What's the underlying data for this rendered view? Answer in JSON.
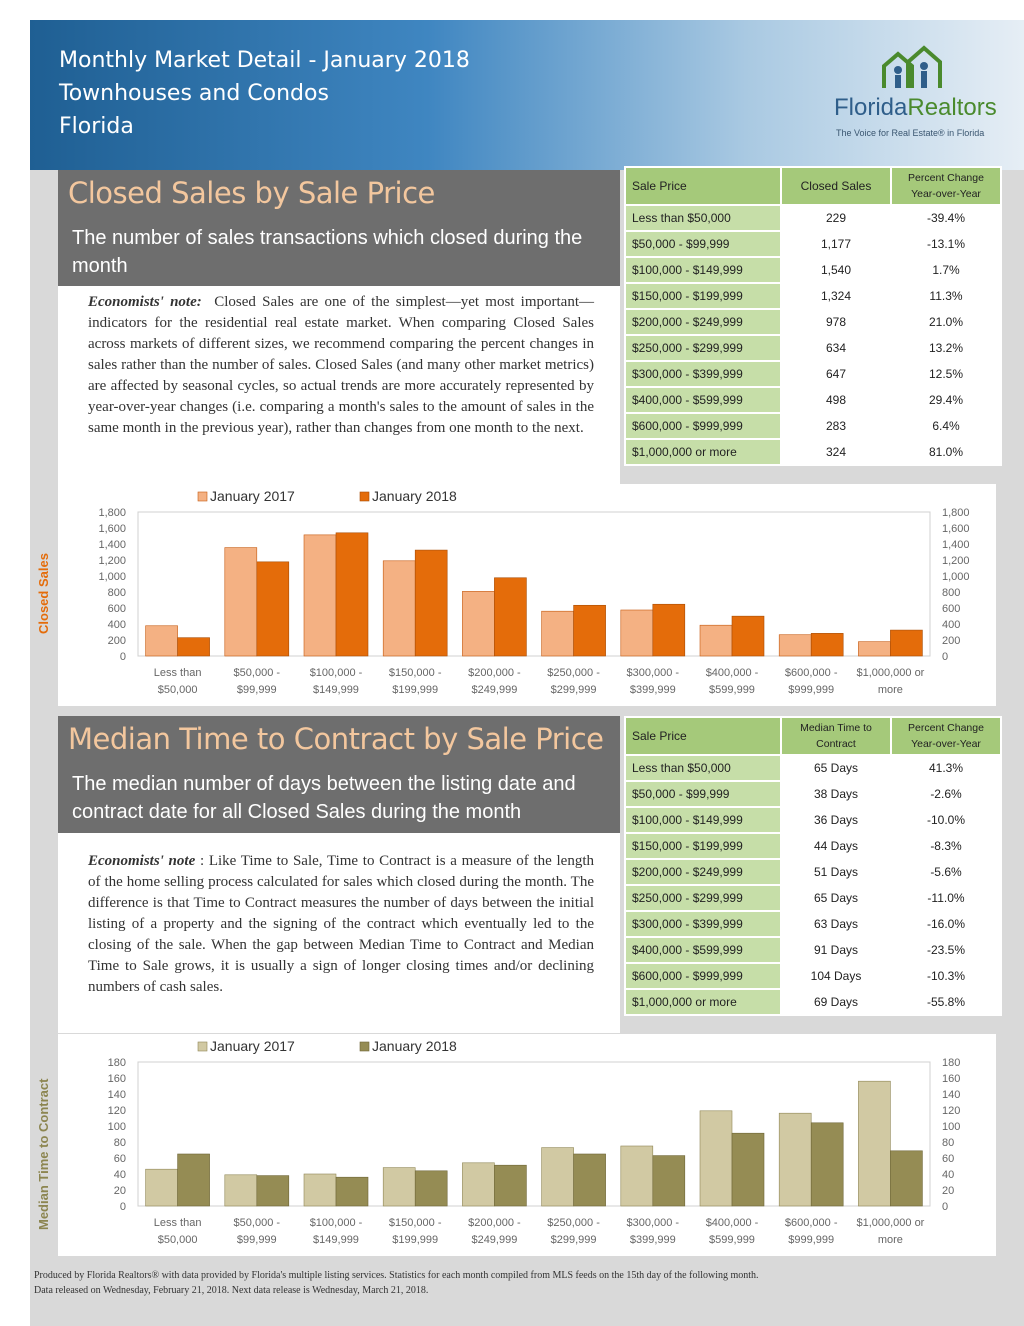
{
  "header": {
    "line1": "Monthly Market Detail - January 2018",
    "line2": "Townhouses and Condos",
    "line3": "Florida",
    "logo_name_part1": "Florida",
    "logo_name_part2": "Realtors",
    "logo_tagline": "The Voice for Real Estate® in Florida",
    "colors": {
      "header_start": "#1f5f93",
      "header_end": "#e6eef5"
    }
  },
  "closed_sales": {
    "title": "Closed Sales by Sale Price",
    "subtitle": "The number of sales transactions which closed during the month",
    "note_lead": "Economists' note:",
    "note_body": "Closed Sales are one of the simplest—yet most important—indicators for the residential real estate market. When comparing Closed Sales across markets of different sizes, we recommend comparing the percent changes in sales rather than the number of sales. Closed Sales (and many other market metrics) are affected by seasonal cycles, so actual trends are more accurately represented by year-over-year changes (i.e. comparing a month's sales to the amount of sales in the same month in the previous year), rather than changes from one month to the next.",
    "table": {
      "headers": [
        "Sale Price",
        "Closed Sales",
        "Percent Change Year-over-Year"
      ],
      "rows": [
        [
          "Less than $50,000",
          "229",
          "-39.4%"
        ],
        [
          "$50,000 - $99,999",
          "1,177",
          "-13.1%"
        ],
        [
          "$100,000 - $149,999",
          "1,540",
          "1.7%"
        ],
        [
          "$150,000 - $199,999",
          "1,324",
          "11.3%"
        ],
        [
          "$200,000 - $249,999",
          "978",
          "21.0%"
        ],
        [
          "$250,000 - $299,999",
          "634",
          "13.2%"
        ],
        [
          "$300,000 - $399,999",
          "647",
          "12.5%"
        ],
        [
          "$400,000 - $599,999",
          "498",
          "29.4%"
        ],
        [
          "$600,000 - $999,999",
          "283",
          "6.4%"
        ],
        [
          "$1,000,000 or more",
          "324",
          "81.0%"
        ]
      ]
    }
  },
  "median_time": {
    "title": "Median Time to Contract by Sale Price",
    "subtitle": "The median number of days between the listing date and contract date for all Closed Sales during the month",
    "note_lead": "Economists' note",
    "note_body": ": Like Time to Sale, Time to Contract is a measure of the length of the home selling process calculated for sales which closed during the month. The difference is that Time to Contract measures the number of days between the initial listing of a property and the signing of the contract which eventually led to the closing of the sale. When the gap between Median Time to Contract and Median Time to Sale grows, it is usually a sign of longer closing times and/or declining numbers of cash sales.",
    "table": {
      "headers": [
        "Sale Price",
        "Median Time to Contract",
        "Percent Change Year-over-Year"
      ],
      "rows": [
        [
          "Less than $50,000",
          "65 Days",
          "41.3%"
        ],
        [
          "$50,000 - $99,999",
          "38 Days",
          "-2.6%"
        ],
        [
          "$100,000 - $149,999",
          "36 Days",
          "-10.0%"
        ],
        [
          "$150,000 - $199,999",
          "44 Days",
          "-8.3%"
        ],
        [
          "$200,000 - $249,999",
          "51 Days",
          "-5.6%"
        ],
        [
          "$250,000 - $299,999",
          "65 Days",
          "-11.0%"
        ],
        [
          "$300,000 - $399,999",
          "63 Days",
          "-16.0%"
        ],
        [
          "$400,000 - $599,999",
          "91 Days",
          "-23.5%"
        ],
        [
          "$600,000 - $999,999",
          "104 Days",
          "-10.3%"
        ],
        [
          "$1,000,000 or more",
          "69 Days",
          "-55.8%"
        ]
      ]
    }
  },
  "chart_data": [
    {
      "type": "bar",
      "ylabel": "Closed Sales",
      "ylim": [
        0,
        1800
      ],
      "yticks": [
        "0",
        "200",
        "400",
        "600",
        "800",
        "1,000",
        "1,200",
        "1,400",
        "1,600",
        "1,800"
      ],
      "ytick_values": [
        0,
        200,
        400,
        600,
        800,
        1000,
        1200,
        1400,
        1600,
        1800
      ],
      "categories": [
        [
          "Less than",
          "$50,000"
        ],
        [
          "$50,000 -",
          "$99,999"
        ],
        [
          "$100,000 -",
          "$149,999"
        ],
        [
          "$150,000 -",
          "$199,999"
        ],
        [
          "$200,000 -",
          "$249,999"
        ],
        [
          "$250,000 -",
          "$299,999"
        ],
        [
          "$300,000 -",
          "$399,999"
        ],
        [
          "$400,000 -",
          "$599,999"
        ],
        [
          "$600,000 -",
          "$999,999"
        ],
        [
          "$1,000,000 or",
          "more"
        ]
      ],
      "series": [
        {
          "name": "January 2017",
          "color": "#f4b183",
          "edge": "#c55a11",
          "values": [
            378,
            1355,
            1514,
            1190,
            808,
            560,
            575,
            385,
            266,
            179
          ]
        },
        {
          "name": "January 2018",
          "color": "#e46c0a",
          "edge": "#a84d05",
          "values": [
            229,
            1177,
            1540,
            1324,
            978,
            634,
            647,
            498,
            283,
            324
          ]
        }
      ],
      "grid": false,
      "legend": "top",
      "ylabel_color": "#e46c0a"
    },
    {
      "type": "bar",
      "ylabel": "Median Time to Contract",
      "ylim": [
        0,
        180
      ],
      "yticks": [
        "0",
        "20",
        "40",
        "60",
        "80",
        "100",
        "120",
        "140",
        "160",
        "180"
      ],
      "ytick_values": [
        0,
        20,
        40,
        60,
        80,
        100,
        120,
        140,
        160,
        180
      ],
      "categories": [
        [
          "Less than",
          "$50,000"
        ],
        [
          "$50,000 -",
          "$99,999"
        ],
        [
          "$100,000 -",
          "$149,999"
        ],
        [
          "$150,000 -",
          "$199,999"
        ],
        [
          "$200,000 -",
          "$249,999"
        ],
        [
          "$250,000 -",
          "$299,999"
        ],
        [
          "$300,000 -",
          "$399,999"
        ],
        [
          "$400,000 -",
          "$599,999"
        ],
        [
          "$600,000 -",
          "$999,999"
        ],
        [
          "$1,000,000 or",
          "more"
        ]
      ],
      "series": [
        {
          "name": "January 2017",
          "color": "#d1c9a3",
          "edge": "#8f8755",
          "values": [
            46,
            39,
            40,
            48,
            54,
            73,
            75,
            119,
            116,
            156
          ]
        },
        {
          "name": "January 2018",
          "color": "#958c54",
          "edge": "#6e6637",
          "values": [
            65,
            38,
            36,
            44,
            51,
            65,
            63,
            91,
            104,
            69
          ]
        }
      ],
      "grid": false,
      "legend": "top",
      "ylabel_color": "#8c8550"
    }
  ],
  "footer": {
    "line1": "Produced by Florida Realtors® with data provided by Florida's multiple listing services. Statistics for each month compiled from MLS feeds on the 15th day of the following month.",
    "line2": "Data released on Wednesday, February 21, 2018. Next data release is Wednesday, March 21, 2018."
  }
}
